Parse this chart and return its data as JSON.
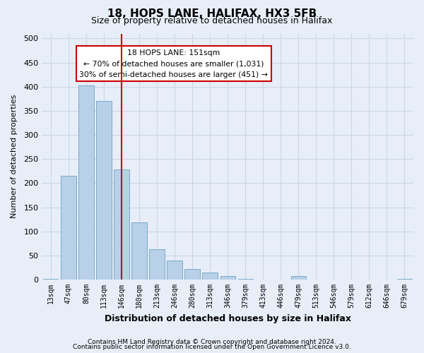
{
  "title": "18, HOPS LANE, HALIFAX, HX3 5FB",
  "subtitle": "Size of property relative to detached houses in Halifax",
  "xlabel": "Distribution of detached houses by size in Halifax",
  "ylabel": "Number of detached properties",
  "bar_labels": [
    "13sqm",
    "47sqm",
    "80sqm",
    "113sqm",
    "146sqm",
    "180sqm",
    "213sqm",
    "246sqm",
    "280sqm",
    "313sqm",
    "346sqm",
    "379sqm",
    "413sqm",
    "446sqm",
    "479sqm",
    "513sqm",
    "546sqm",
    "579sqm",
    "612sqm",
    "646sqm",
    "679sqm"
  ],
  "bar_values": [
    2,
    215,
    403,
    370,
    229,
    119,
    63,
    39,
    22,
    14,
    7,
    1,
    0,
    0,
    7,
    0,
    0,
    0,
    0,
    0,
    2
  ],
  "bar_color": "#b8d0e8",
  "bar_edge_color": "#7aaac8",
  "vline_x": 4,
  "vline_color": "#cc0000",
  "annotation_box_line1": "18 HOPS LANE: 151sqm",
  "annotation_box_line2": "← 70% of detached houses are smaller (1,031)",
  "annotation_box_line3": "30% of semi-detached houses are larger (451) →",
  "annotation_box_color": "#ffffff",
  "annotation_box_edge_color": "#cc0000",
  "ylim": [
    0,
    510
  ],
  "yticks": [
    0,
    50,
    100,
    150,
    200,
    250,
    300,
    350,
    400,
    450,
    500
  ],
  "grid_color": "#cdd6e8",
  "footer_line1": "Contains HM Land Registry data © Crown copyright and database right 2024.",
  "footer_line2": "Contains public sector information licensed under the Open Government Licence v3.0.",
  "bg_color": "#e8eef8",
  "plot_bg_color": "#e8eef8"
}
